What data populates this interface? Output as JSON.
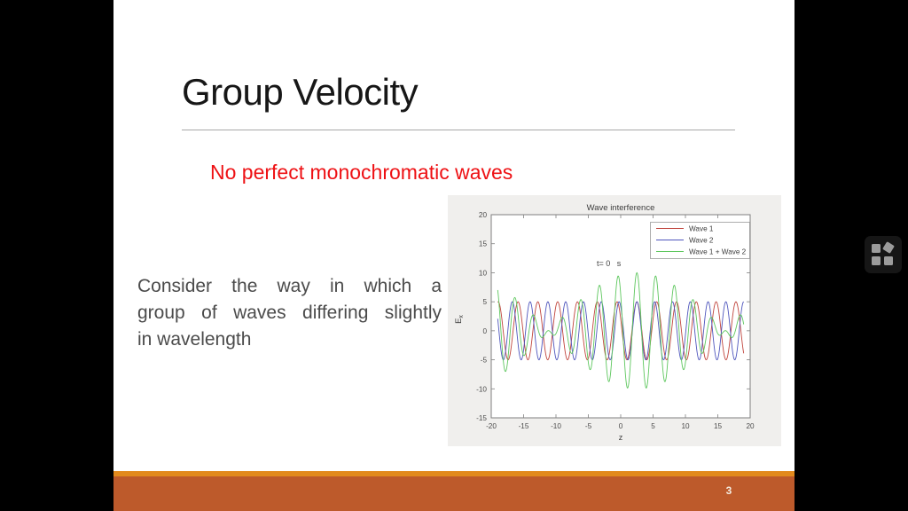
{
  "slide": {
    "title": "Group Velocity",
    "subtitle": "No perfect monochromatic waves",
    "body_lines": [
      "Consider the way in which a",
      "group of waves differing slightly",
      "in wavelength"
    ],
    "page_number": "3",
    "colors": {
      "title_text": "#171717",
      "subtitle_red": "#ee1114",
      "body_text": "#4b4b4b",
      "footer_strip": "#e28a1d",
      "footer_bar": "#bd5a2b"
    }
  },
  "overlay": {
    "apps_icon": "four-squares-grid"
  },
  "chart_data": {
    "type": "line",
    "title": "Wave interference",
    "xlabel": "z",
    "ylabel_main": "E",
    "ylabel_sub": "x",
    "annotation": "t= 0   s",
    "xlim": [
      -20,
      20
    ],
    "ylim": [
      -15,
      20
    ],
    "xticks": [
      -20,
      -15,
      -10,
      -5,
      0,
      5,
      10,
      15,
      20
    ],
    "yticks": [
      -15,
      -10,
      -5,
      0,
      5,
      10,
      15,
      20
    ],
    "z_range": [
      -19,
      19
    ],
    "grid": false,
    "legend": [
      "Wave 1",
      "Wave 2",
      "Wave 1 + Wave 2"
    ],
    "legend_position": "upper right",
    "series": [
      {
        "name": "Wave 1",
        "color": "#c0443c",
        "amplitude": 5,
        "wavelength": 3.06,
        "peak_z": 2.5
      },
      {
        "name": "Wave 2",
        "color": "#4f56bd",
        "amplitude": 5,
        "wavelength": 2.75,
        "peak_z": 2.5
      },
      {
        "name": "Wave 1 + Wave 2",
        "color": "#5ec75e",
        "sum_of": [
          0,
          1
        ],
        "beat_max": 10,
        "envelope_nodes_z": [
          -11.1,
          16.1
        ]
      }
    ],
    "figure_bg": "#f0efed",
    "plot_bg": "#ffffff",
    "axis_color": "#7f7f7f",
    "text_color": "#3c3c3c"
  }
}
